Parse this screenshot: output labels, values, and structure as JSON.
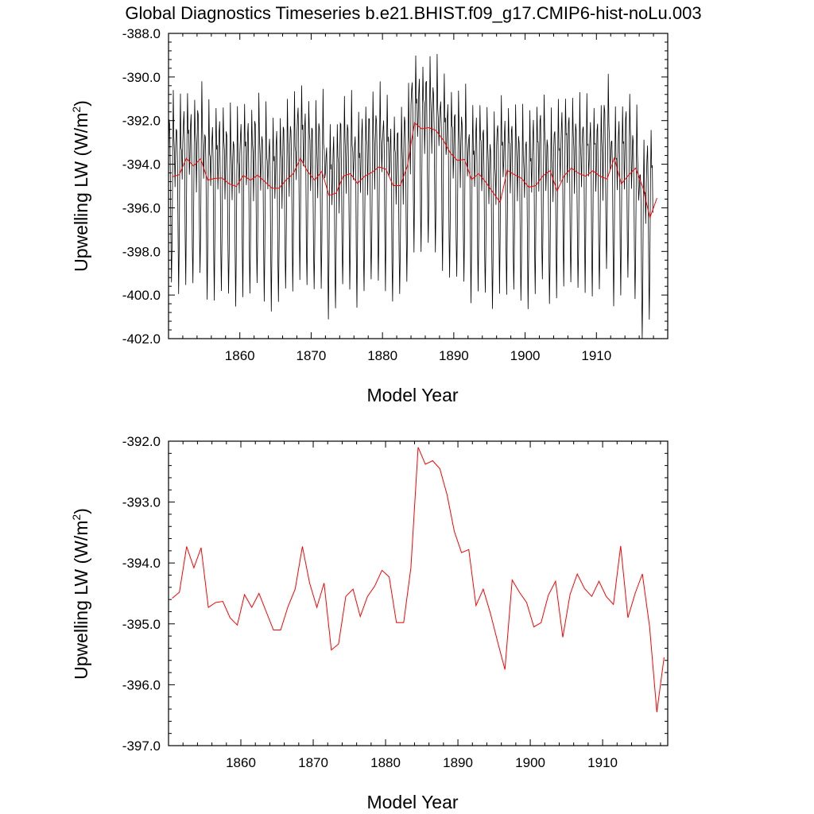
{
  "page_title": "Global Diagnostics Timeseries b.e21.BHIST.f09_g17.CMIP6-hist-noLu.003",
  "chart_data": [
    {
      "type": "line",
      "xlabel": "Model Year",
      "ylabel": "Upwelling LW (W/m",
      "ylabel_sup": "2",
      "ylabel_close": ")",
      "xlim": [
        1850,
        1920
      ],
      "ylim": [
        -402.0,
        -388.0
      ],
      "xticks": [
        1860,
        1870,
        1880,
        1890,
        1900,
        1910
      ],
      "yticks": [
        "-388.0",
        "-390.0",
        "-392.0",
        "-394.0",
        "-396.0",
        "-398.0",
        "-400.0",
        "-402.0"
      ],
      "yvals": [
        -388,
        -390,
        -392,
        -394,
        -396,
        -398,
        -400,
        -402
      ],
      "grid": false,
      "series": [
        {
          "kind": "monthly",
          "color": "#000000",
          "x_start": 1850.0,
          "step": 0.0833333,
          "cycle": [
            -393.8,
            -392.6,
            -392.4,
            -394.2,
            -397.8,
            -400.0,
            -397.6,
            -394.0,
            -391.2,
            -393.2,
            -393.5,
            -395.3
          ],
          "annual_anomaly": [
            0.3,
            0.25,
            0.75,
            0.35,
            0.72,
            -0.03,
            0.05,
            0.02,
            -0.24,
            -0.37,
            0.22,
            -0.07,
            0.23,
            -0.17,
            -0.43,
            -0.43,
            -0.03,
            0.27,
            1.03,
            0.37,
            -0.07,
            0.37,
            -0.77,
            -0.67,
            0.15,
            0.3,
            -0.23,
            0.15,
            0.37,
            0.68,
            0.53,
            -0.3,
            -0.3,
            0.6,
            2.3,
            2.0,
            2.05,
            1.92,
            1.45,
            0.85,
            0.5,
            0.55,
            -0.03,
            0.25,
            -0.23,
            -0.73,
            0.4,
            0.12,
            -0.08,
            -0.38,
            -0.32,
            0.18,
            0.4,
            -0.55,
            0.17,
            0.55,
            0.28,
            0.16,
            0.4,
            0.12,
            -0.03,
            1.0,
            -0.23,
            0.19,
            0.52,
            -0.4,
            -1.78,
            -0.9
          ]
        },
        {
          "kind": "annual",
          "color": "#ff0000",
          "x": [
            1850.5,
            1851.5,
            1852.5,
            1853.5,
            1854.5,
            1855.5,
            1856.5,
            1857.5,
            1858.5,
            1859.5,
            1860.5,
            1861.5,
            1862.5,
            1863.5,
            1864.5,
            1865.5,
            1866.5,
            1867.5,
            1868.5,
            1869.5,
            1870.5,
            1871.5,
            1872.5,
            1873.5,
            1874.5,
            1875.5,
            1876.5,
            1877.5,
            1878.5,
            1879.5,
            1880.5,
            1881.5,
            1882.5,
            1883.5,
            1884.5,
            1885.5,
            1886.5,
            1887.5,
            1888.5,
            1889.5,
            1890.5,
            1891.5,
            1892.5,
            1893.5,
            1894.5,
            1895.5,
            1896.5,
            1897.5,
            1898.5,
            1899.5,
            1900.5,
            1901.5,
            1902.5,
            1903.5,
            1904.5,
            1905.5,
            1906.5,
            1907.5,
            1908.5,
            1909.5,
            1910.5,
            1911.5,
            1912.5,
            1913.5,
            1914.5,
            1915.5,
            1916.5,
            1917.5,
            1918.5
          ],
          "y": [
            -394.58,
            -394.48,
            -393.73,
            -394.08,
            -393.75,
            -394.73,
            -394.65,
            -394.63,
            -394.9,
            -395.02,
            -394.52,
            -394.73,
            -394.5,
            -394.8,
            -395.1,
            -395.1,
            -394.72,
            -394.43,
            -393.73,
            -394.33,
            -394.73,
            -394.33,
            -395.43,
            -395.33,
            -394.55,
            -394.43,
            -394.88,
            -394.55,
            -394.38,
            -394.12,
            -394.23,
            -394.98,
            -394.98,
            -394.08,
            -392.1,
            -392.38,
            -392.32,
            -392.45,
            -392.88,
            -393.48,
            -393.83,
            -393.78,
            -394.7,
            -394.43,
            -394.83,
            -395.3,
            -395.75,
            -394.28,
            -394.48,
            -394.65,
            -395.05,
            -394.98,
            -394.53,
            -394.3,
            -395.22,
            -394.52,
            -394.18,
            -394.42,
            -394.55,
            -394.3,
            -394.55,
            -394.68,
            -393.72,
            -394.9,
            -394.5,
            -394.18,
            -395.05,
            -396.45,
            -395.55
          ]
        }
      ]
    },
    {
      "type": "line",
      "xlabel": "Model Year",
      "ylabel": "Upwelling LW (W/m",
      "ylabel_sup": "2",
      "ylabel_close": ")",
      "xlim": [
        1850,
        1919
      ],
      "ylim": [
        -397.0,
        -392.0
      ],
      "xticks": [
        1860,
        1870,
        1880,
        1890,
        1900,
        1910
      ],
      "yticks": [
        "-392.0",
        "-393.0",
        "-394.0",
        "-395.0",
        "-396.0",
        "-397.0"
      ],
      "yvals": [
        -392,
        -393,
        -394,
        -395,
        -396,
        -397
      ],
      "grid": false,
      "series": [
        {
          "kind": "annual",
          "color": "#ff0000",
          "x": [
            1850.5,
            1851.5,
            1852.5,
            1853.5,
            1854.5,
            1855.5,
            1856.5,
            1857.5,
            1858.5,
            1859.5,
            1860.5,
            1861.5,
            1862.5,
            1863.5,
            1864.5,
            1865.5,
            1866.5,
            1867.5,
            1868.5,
            1869.5,
            1870.5,
            1871.5,
            1872.5,
            1873.5,
            1874.5,
            1875.5,
            1876.5,
            1877.5,
            1878.5,
            1879.5,
            1880.5,
            1881.5,
            1882.5,
            1883.5,
            1884.5,
            1885.5,
            1886.5,
            1887.5,
            1888.5,
            1889.5,
            1890.5,
            1891.5,
            1892.5,
            1893.5,
            1894.5,
            1895.5,
            1896.5,
            1897.5,
            1898.5,
            1899.5,
            1900.5,
            1901.5,
            1902.5,
            1903.5,
            1904.5,
            1905.5,
            1906.5,
            1907.5,
            1908.5,
            1909.5,
            1910.5,
            1911.5,
            1912.5,
            1913.5,
            1914.5,
            1915.5,
            1916.5,
            1917.5,
            1918.5
          ],
          "y": [
            -394.58,
            -394.48,
            -393.73,
            -394.08,
            -393.75,
            -394.73,
            -394.65,
            -394.63,
            -394.9,
            -395.02,
            -394.52,
            -394.73,
            -394.5,
            -394.8,
            -395.1,
            -395.1,
            -394.72,
            -394.43,
            -393.73,
            -394.33,
            -394.73,
            -394.33,
            -395.43,
            -395.33,
            -394.55,
            -394.43,
            -394.88,
            -394.55,
            -394.38,
            -394.12,
            -394.23,
            -394.98,
            -394.98,
            -394.08,
            -392.1,
            -392.38,
            -392.32,
            -392.45,
            -392.88,
            -393.48,
            -393.83,
            -393.78,
            -394.7,
            -394.43,
            -394.83,
            -395.3,
            -395.75,
            -394.28,
            -394.48,
            -394.65,
            -395.05,
            -394.98,
            -394.53,
            -394.3,
            -395.22,
            -394.52,
            -394.18,
            -394.42,
            -394.55,
            -394.3,
            -394.55,
            -394.68,
            -393.72,
            -394.9,
            -394.5,
            -394.18,
            -395.05,
            -396.45,
            -395.55
          ]
        }
      ]
    }
  ]
}
